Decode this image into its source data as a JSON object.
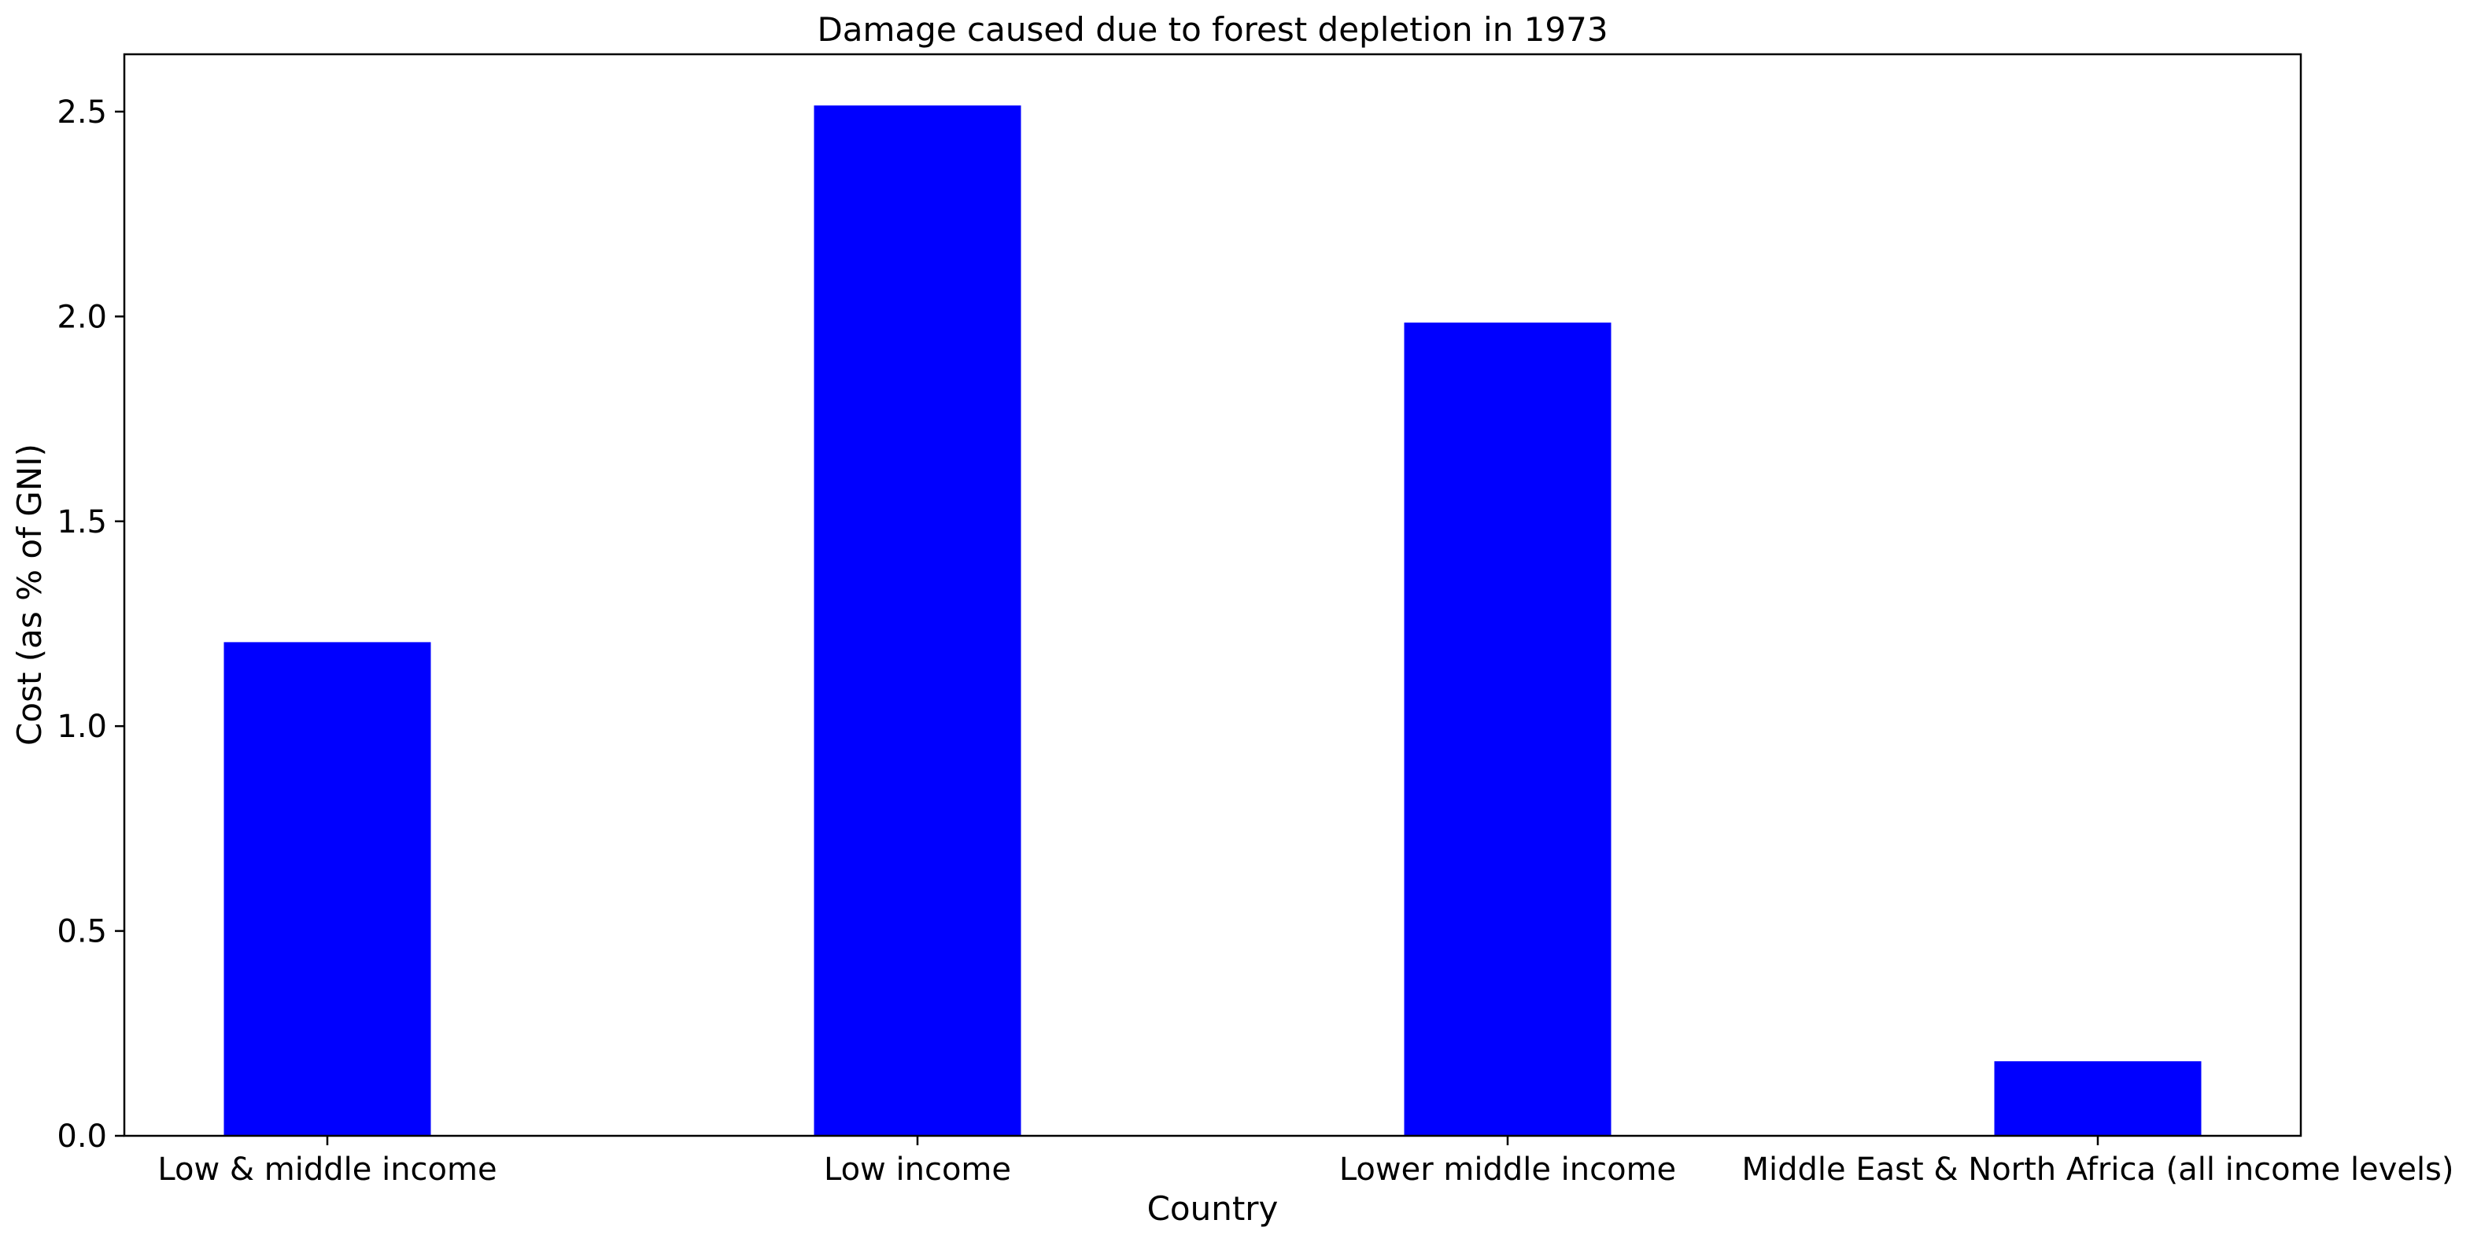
{
  "chart_data": {
    "type": "bar",
    "title": "Damage caused due to forest depletion in 1973",
    "xlabel": "Country",
    "ylabel": "Cost (as % of GNI)",
    "categories": [
      "Low & middle income",
      "Low income",
      "Lower middle income",
      "Middle East & North Africa (all income levels)"
    ],
    "values": [
      1.205,
      2.515,
      1.985,
      0.182
    ],
    "ylim": [
      0,
      2.64
    ],
    "yticks": [
      0.0,
      0.5,
      1.0,
      1.5,
      2.0,
      2.5
    ],
    "ytick_labels": [
      "0.0",
      "0.5",
      "1.0",
      "1.5",
      "2.0",
      "2.5"
    ],
    "bar_color": "#0000ff",
    "grid": false,
    "legend": false
  }
}
